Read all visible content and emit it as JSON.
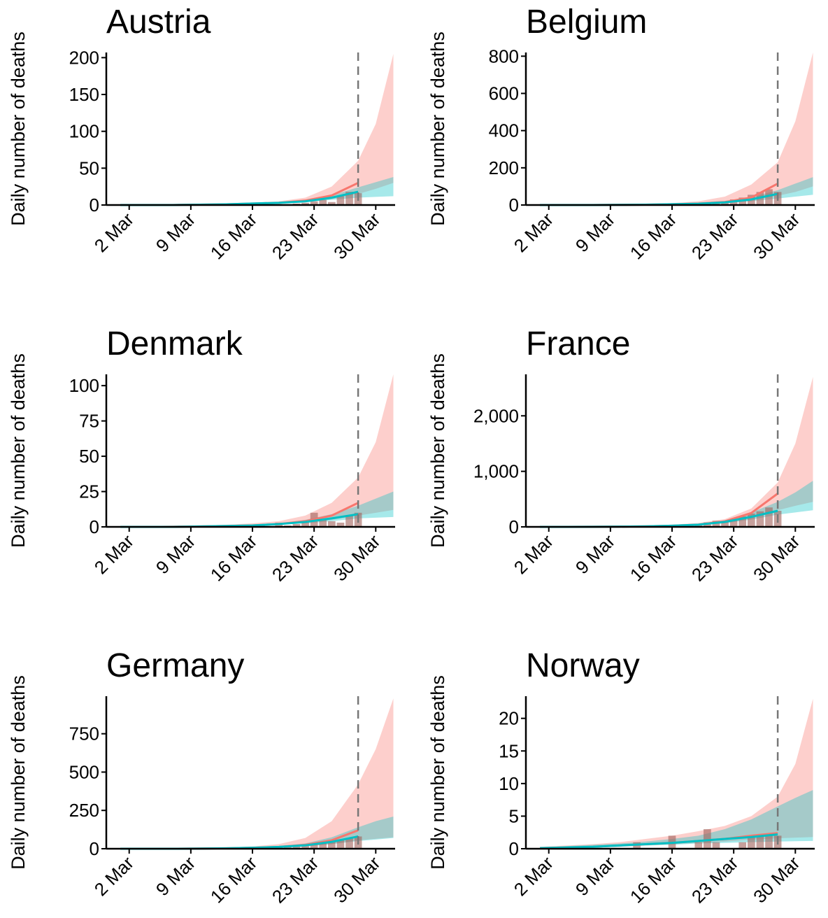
{
  "chart_data": [
    {
      "type": "line",
      "title": "Austria",
      "y_label": "Daily number of deaths",
      "x": [
        1,
        4,
        7,
        10,
        13,
        16,
        19,
        22,
        25,
        28,
        30,
        32
      ],
      "series": [
        {
          "color": "#f8766d",
          "values": [
            0,
            0,
            0,
            0.5,
            1,
            2,
            3,
            6,
            13,
            30,
            null,
            null
          ],
          "lower": [
            0,
            0,
            0,
            0.3,
            0.7,
            1.5,
            2.5,
            4,
            8,
            15,
            22,
            30
          ],
          "upper": [
            0.5,
            0.5,
            1,
            1,
            2,
            3,
            5,
            10,
            25,
            60,
            110,
            205
          ]
        },
        {
          "color": "#00bfc4",
          "values": [
            0,
            0,
            0,
            0.5,
            1,
            2,
            3,
            5,
            10,
            18,
            null,
            null
          ],
          "lower": [
            0,
            0,
            0,
            0.3,
            0.7,
            1.3,
            2.5,
            4,
            7,
            10,
            11,
            12
          ],
          "upper": [
            0.3,
            0.5,
            0.8,
            1,
            1.5,
            2.5,
            4,
            7,
            13,
            24,
            31,
            38
          ]
        }
      ],
      "bars": {
        "color": "#a0615a",
        "x": [
          20,
          21,
          22,
          23,
          24,
          25,
          26,
          27,
          28
        ],
        "values": [
          1,
          2,
          3,
          5,
          7,
          4,
          12,
          18,
          16
        ]
      },
      "marker_x": 28,
      "xlim": [
        -0.6,
        32.2
      ],
      "xticks": [
        {
          "value": 2,
          "label": "2 Mar"
        },
        {
          "value": 9,
          "label": "9 Mar"
        },
        {
          "value": 16,
          "label": "16 Mar"
        },
        {
          "value": 23,
          "label": "23 Mar"
        },
        {
          "value": 30,
          "label": "30 Mar"
        }
      ],
      "ylim": [
        0,
        207
      ],
      "yticks": [
        0,
        50,
        100,
        150,
        200
      ]
    },
    {
      "type": "line",
      "title": "Belgium",
      "y_label": "Daily number of deaths",
      "x": [
        1,
        4,
        7,
        10,
        13,
        16,
        19,
        22,
        25,
        28,
        30,
        32
      ],
      "series": [
        {
          "color": "#f8766d",
          "values": [
            0,
            0,
            0,
            1,
            2,
            4,
            8,
            16,
            40,
            115,
            null,
            null
          ],
          "lower": [
            0,
            0,
            0,
            1,
            2,
            3,
            6,
            12,
            25,
            50,
            70,
            100
          ],
          "upper": [
            1,
            1,
            2,
            3,
            5,
            10,
            20,
            45,
            110,
            230,
            450,
            820
          ]
        },
        {
          "color": "#00bfc4",
          "values": [
            0,
            0,
            0,
            1,
            2,
            4,
            7,
            14,
            30,
            60,
            null,
            null
          ],
          "lower": [
            0,
            0,
            0,
            1,
            1,
            3,
            5,
            10,
            20,
            35,
            45,
            55
          ],
          "upper": [
            0,
            1,
            1,
            2,
            3,
            5,
            9,
            18,
            40,
            80,
            115,
            150
          ]
        }
      ],
      "bars": {
        "color": "#a0615a",
        "x": [
          18,
          19,
          20,
          21,
          22,
          23,
          24,
          25,
          26,
          27,
          28
        ],
        "values": [
          2,
          5,
          10,
          14,
          20,
          30,
          40,
          55,
          70,
          85,
          70
        ]
      },
      "marker_x": 28,
      "xlim": [
        -0.6,
        32.2
      ],
      "xticks": [
        {
          "value": 2,
          "label": "2 Mar"
        },
        {
          "value": 9,
          "label": "9 Mar"
        },
        {
          "value": 16,
          "label": "16 Mar"
        },
        {
          "value": 23,
          "label": "23 Mar"
        },
        {
          "value": 30,
          "label": "30 Mar"
        }
      ],
      "ylim": [
        0,
        820
      ],
      "yticks": [
        0,
        200,
        400,
        600,
        800
      ]
    },
    {
      "type": "line",
      "title": "Denmark",
      "y_label": "Daily number of deaths",
      "x": [
        1,
        4,
        7,
        10,
        13,
        16,
        19,
        22,
        25,
        28,
        30,
        32
      ],
      "series": [
        {
          "color": "#f8766d",
          "values": [
            0,
            0,
            0,
            0.3,
            0.6,
            1,
            2,
            4,
            8,
            17,
            null,
            null
          ],
          "lower": [
            0,
            0,
            0,
            0.2,
            0.4,
            0.8,
            1.5,
            3,
            5,
            8,
            10,
            12
          ],
          "upper": [
            0.5,
            0.5,
            1,
            1,
            1.5,
            2.5,
            4,
            8,
            17,
            35,
            60,
            108
          ]
        },
        {
          "color": "#00bfc4",
          "values": [
            0,
            0,
            0,
            0.3,
            0.6,
            1,
            2,
            3.5,
            6,
            9,
            null,
            null
          ],
          "lower": [
            0,
            0,
            0,
            0.2,
            0.4,
            0.8,
            1.5,
            2.5,
            4,
            6,
            6.5,
            7
          ],
          "upper": [
            0.3,
            0.5,
            0.6,
            0.8,
            1,
            1.5,
            2.5,
            5,
            9,
            15,
            20,
            25
          ]
        }
      ],
      "bars": {
        "color": "#a0615a",
        "x": [
          15,
          16,
          17,
          18,
          19,
          20,
          21,
          22,
          23,
          24,
          25,
          26,
          27,
          28
        ],
        "values": [
          1,
          0,
          2,
          0,
          3,
          1,
          2,
          4,
          10,
          5,
          4,
          3,
          8,
          10
        ]
      },
      "marker_x": 28,
      "xlim": [
        -0.6,
        32.2
      ],
      "xticks": [
        {
          "value": 2,
          "label": "2 Mar"
        },
        {
          "value": 9,
          "label": "9 Mar"
        },
        {
          "value": 16,
          "label": "16 Mar"
        },
        {
          "value": 23,
          "label": "23 Mar"
        },
        {
          "value": 30,
          "label": "30 Mar"
        }
      ],
      "ylim": [
        0,
        108
      ],
      "yticks": [
        0,
        25,
        50,
        75,
        100
      ]
    },
    {
      "type": "line",
      "title": "France",
      "y_label": "Daily number of deaths",
      "x": [
        1,
        4,
        7,
        10,
        13,
        16,
        19,
        22,
        25,
        28,
        30,
        32
      ],
      "series": [
        {
          "color": "#f8766d",
          "values": [
            0,
            0,
            2,
            5,
            10,
            20,
            40,
            100,
            250,
            600,
            null,
            null
          ],
          "lower": [
            0,
            0,
            1,
            3,
            7,
            15,
            30,
            70,
            150,
            300,
            380,
            450
          ],
          "upper": [
            5,
            5,
            10,
            15,
            25,
            40,
            70,
            140,
            330,
            800,
            1500,
            2700
          ]
        },
        {
          "color": "#00bfc4",
          "values": [
            0,
            0,
            2,
            5,
            10,
            20,
            40,
            90,
            180,
            290,
            null,
            null
          ],
          "lower": [
            0,
            0,
            1,
            3,
            7,
            15,
            30,
            65,
            130,
            220,
            260,
            300
          ],
          "upper": [
            2,
            3,
            5,
            10,
            15,
            30,
            55,
            120,
            260,
            450,
            620,
            830
          ]
        }
      ],
      "bars": {
        "color": "#a0615a",
        "x": [
          15,
          16,
          17,
          18,
          19,
          20,
          21,
          22,
          23,
          24,
          25,
          26,
          27,
          28
        ],
        "values": [
          12,
          16,
          18,
          40,
          50,
          80,
          110,
          95,
          135,
          190,
          240,
          280,
          350,
          290
        ]
      },
      "marker_x": 28,
      "xlim": [
        -0.6,
        32.2
      ],
      "xticks": [
        {
          "value": 2,
          "label": "2 Mar"
        },
        {
          "value": 9,
          "label": "9 Mar"
        },
        {
          "value": 16,
          "label": "16 Mar"
        },
        {
          "value": 23,
          "label": "23 Mar"
        },
        {
          "value": 30,
          "label": "30 Mar"
        }
      ],
      "ylim": [
        0,
        2747
      ],
      "yticks": [
        0,
        {
          "value": 1000,
          "label": "1,000"
        },
        {
          "value": 2000,
          "label": "2,000"
        }
      ]
    },
    {
      "type": "line",
      "title": "Germany",
      "y_label": "Daily number of deaths",
      "x": [
        1,
        4,
        7,
        10,
        13,
        16,
        19,
        22,
        25,
        28,
        30,
        32
      ],
      "series": [
        {
          "color": "#f8766d",
          "values": [
            0,
            0,
            0,
            1,
            3,
            6,
            12,
            25,
            55,
            120,
            null,
            null
          ],
          "lower": [
            0,
            0,
            0,
            1,
            2,
            4,
            8,
            15,
            30,
            55,
            65,
            75
          ],
          "upper": [
            2,
            2,
            3,
            5,
            8,
            15,
            30,
            70,
            180,
            420,
            650,
            980
          ]
        },
        {
          "color": "#00bfc4",
          "values": [
            0,
            0,
            0,
            1,
            3,
            6,
            12,
            22,
            45,
            80,
            null,
            null
          ],
          "lower": [
            0,
            0,
            0,
            1,
            2,
            4,
            8,
            15,
            30,
            50,
            60,
            70
          ],
          "upper": [
            1,
            1,
            2,
            3,
            5,
            9,
            17,
            35,
            75,
            140,
            180,
            210
          ]
        }
      ],
      "bars": {
        "color": "#a0615a",
        "x": [
          9,
          10,
          11,
          12,
          13,
          14,
          15,
          16,
          17,
          18,
          19,
          20,
          21,
          22,
          23,
          24,
          25,
          26,
          27,
          28
        ],
        "values": [
          1,
          0,
          1,
          2,
          3,
          2,
          4,
          5,
          6,
          10,
          15,
          20,
          25,
          30,
          35,
          40,
          50,
          60,
          70,
          80
        ]
      },
      "marker_x": 28,
      "xlim": [
        -0.6,
        32.2
      ],
      "xticks": [
        {
          "value": 2,
          "label": "2 Mar"
        },
        {
          "value": 9,
          "label": "9 Mar"
        },
        {
          "value": 16,
          "label": "16 Mar"
        },
        {
          "value": 23,
          "label": "23 Mar"
        },
        {
          "value": 30,
          "label": "30 Mar"
        }
      ],
      "ylim": [
        0,
        995
      ],
      "yticks": [
        0,
        250,
        500,
        750
      ]
    },
    {
      "type": "line",
      "title": "Norway",
      "y_label": "Daily number of deaths",
      "x": [
        1,
        4,
        7,
        10,
        13,
        16,
        19,
        22,
        25,
        28,
        30,
        32
      ],
      "series": [
        {
          "color": "#f8766d",
          "values": [
            0.1,
            0.2,
            0.3,
            0.5,
            0.7,
            0.9,
            1.2,
            1.5,
            2,
            2.4,
            null,
            null
          ],
          "lower": [
            0,
            0.1,
            0.2,
            0.3,
            0.5,
            0.7,
            0.9,
            1.1,
            1.4,
            1.6,
            1.7,
            1.8
          ],
          "upper": [
            0.3,
            0.5,
            0.7,
            1,
            1.5,
            2,
            2.7,
            3.5,
            5,
            8,
            13,
            23
          ]
        },
        {
          "color": "#00bfc4",
          "values": [
            0.1,
            0.2,
            0.3,
            0.5,
            0.7,
            0.9,
            1.2,
            1.5,
            1.8,
            2.2,
            null,
            null
          ],
          "lower": [
            0,
            0.1,
            0.2,
            0.3,
            0.5,
            0.6,
            0.8,
            0.9,
            1,
            1.1,
            1.15,
            1.2
          ],
          "upper": [
            0.2,
            0.4,
            0.6,
            0.8,
            1.1,
            1.5,
            2,
            3,
            4.5,
            6.5,
            7.8,
            9
          ]
        }
      ],
      "bars": {
        "color": "#a0615a",
        "x": [
          12,
          13,
          14,
          15,
          16,
          17,
          18,
          19,
          20,
          21,
          22,
          23,
          24,
          25,
          26,
          27,
          28
        ],
        "values": [
          1,
          0,
          0,
          0,
          2,
          0,
          0,
          1,
          3,
          1,
          0,
          0,
          1,
          2,
          2,
          2,
          2
        ]
      },
      "marker_x": 28,
      "xlim": [
        -0.6,
        32.2
      ],
      "xticks": [
        {
          "value": 2,
          "label": "2 Mar"
        },
        {
          "value": 9,
          "label": "9 Mar"
        },
        {
          "value": 16,
          "label": "16 Mar"
        },
        {
          "value": 23,
          "label": "23 Mar"
        },
        {
          "value": 30,
          "label": "30 Mar"
        }
      ],
      "ylim": [
        0,
        23.4
      ],
      "yticks": [
        0,
        5,
        10,
        15,
        20
      ]
    }
  ]
}
